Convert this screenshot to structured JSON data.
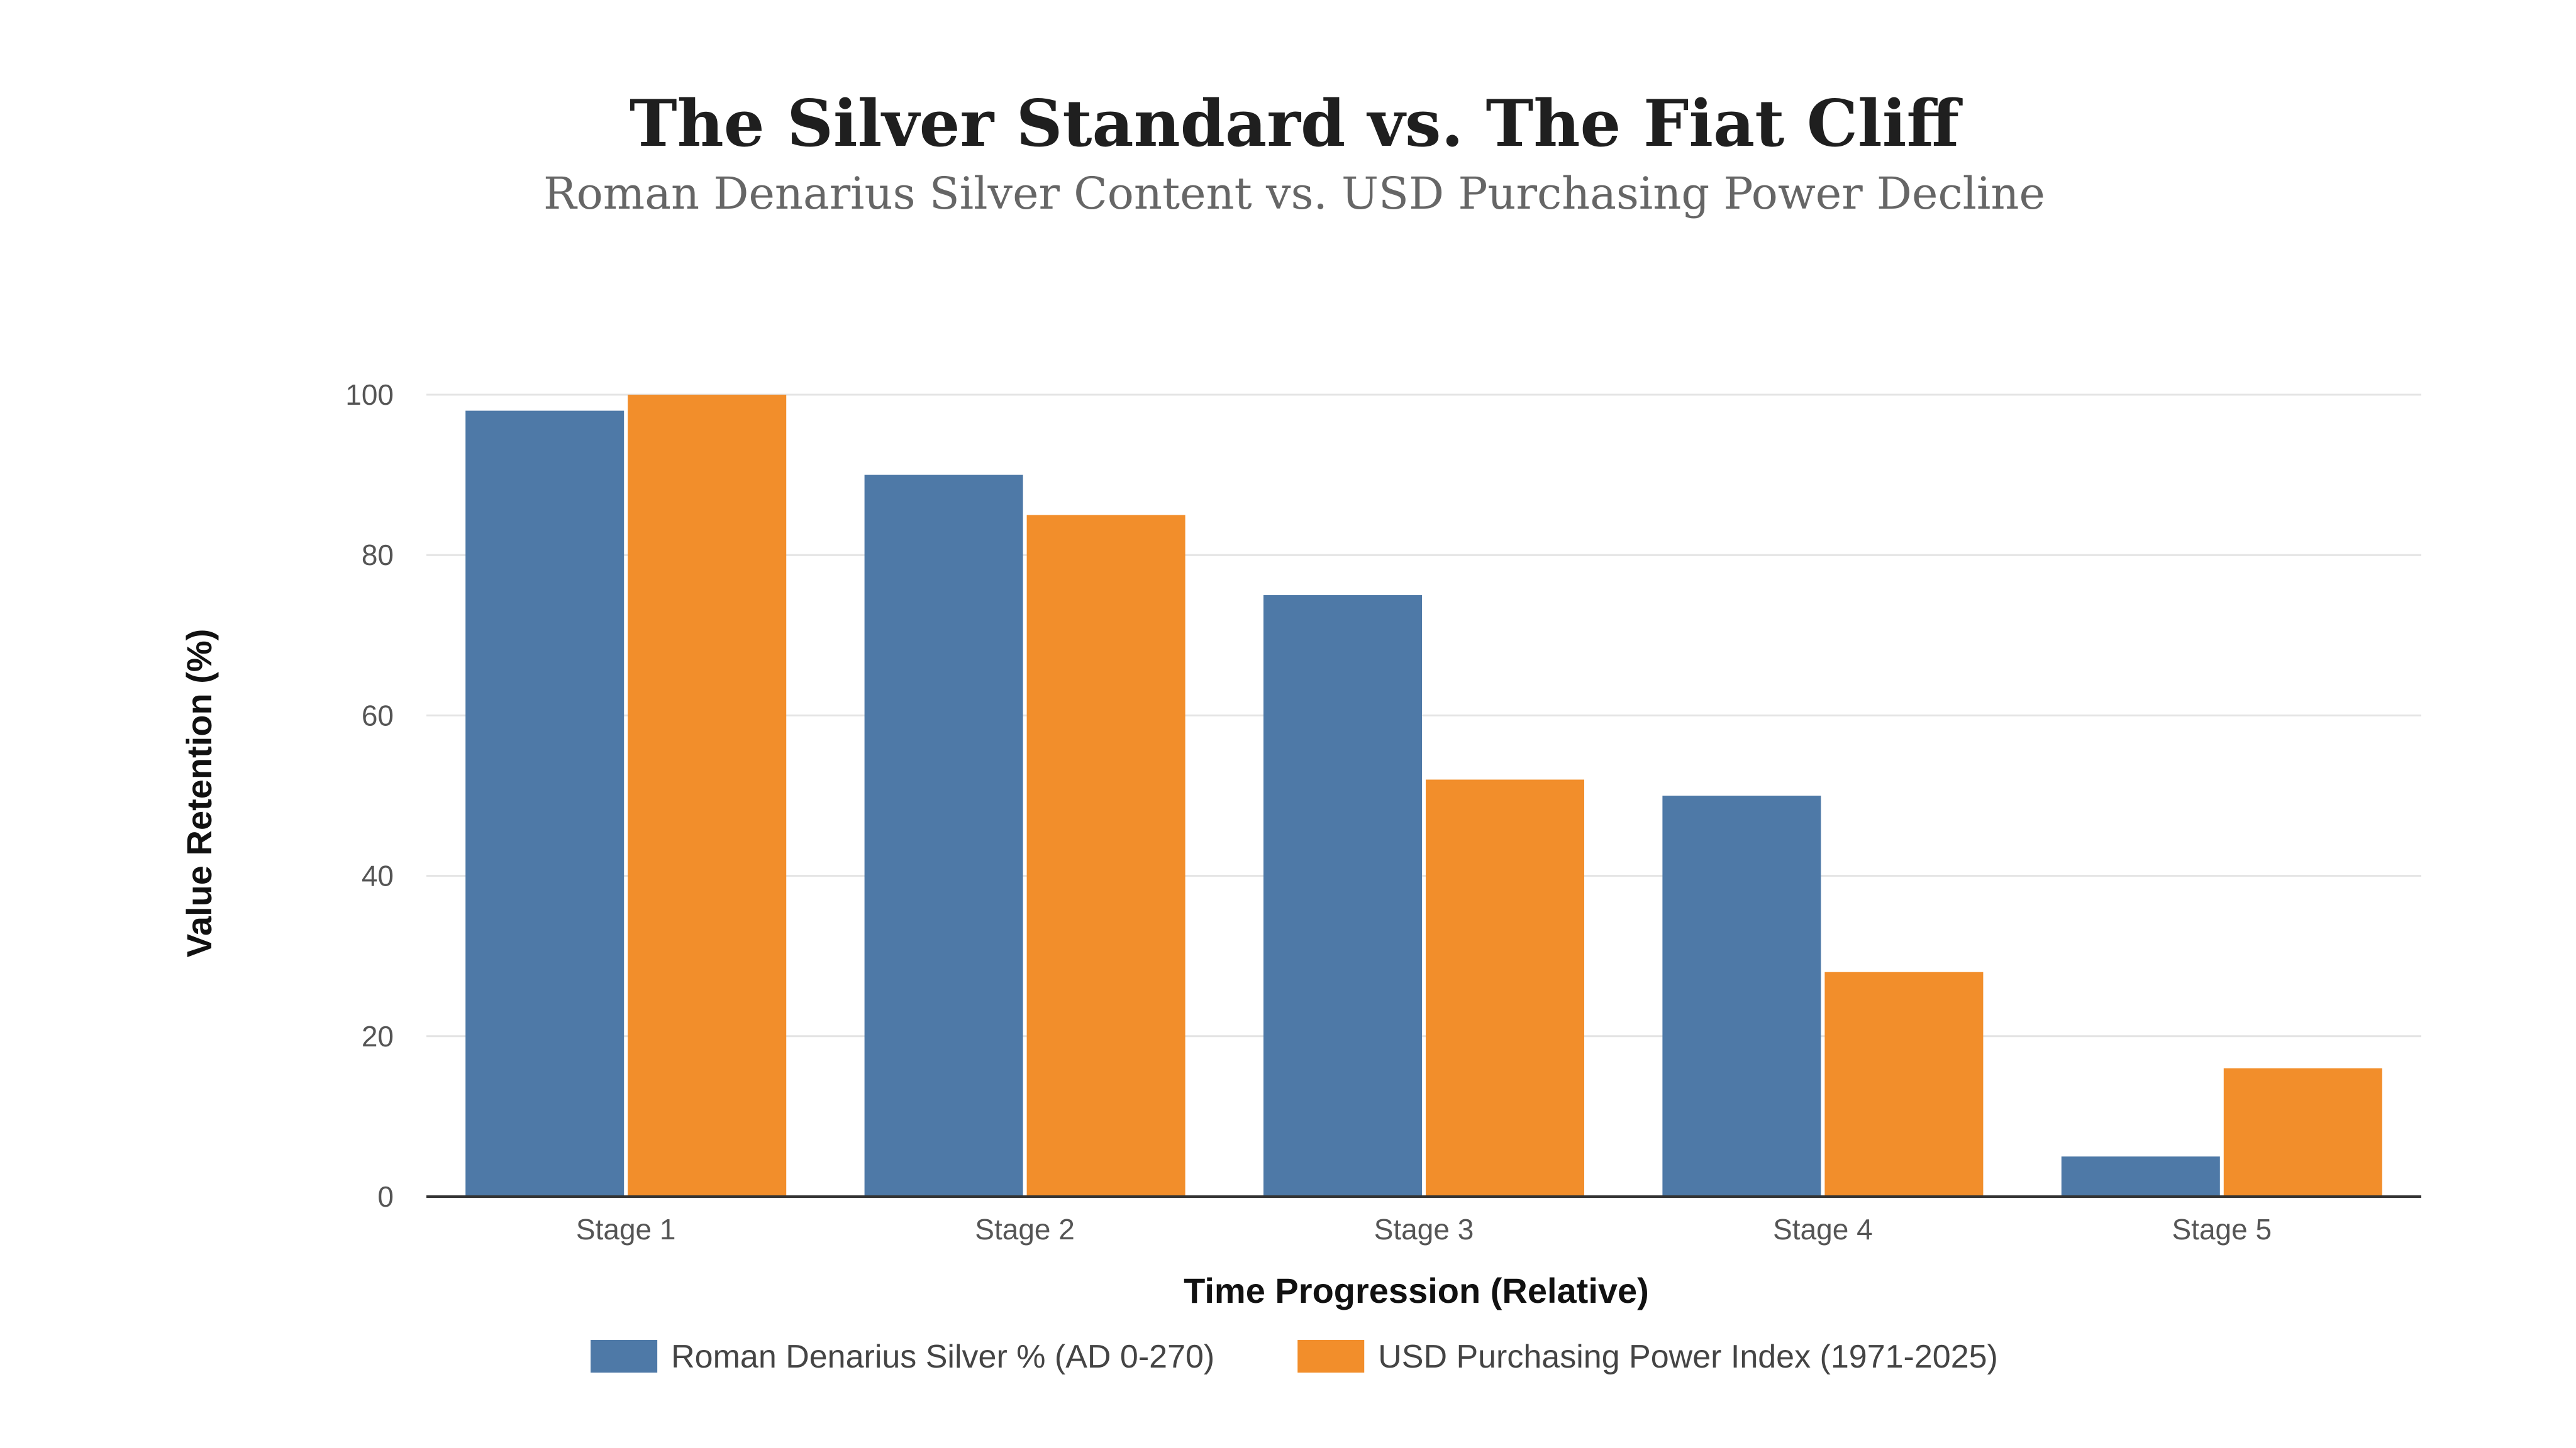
{
  "chart_data": {
    "type": "bar",
    "title": "The Silver Standard vs. The Fiat Cliff",
    "subtitle": "Roman Denarius Silver Content vs. USD Purchasing Power Decline",
    "xlabel": "Time Progression (Relative)",
    "ylabel": "Value Retention (%)",
    "categories": [
      "Stage 1",
      "Stage 2",
      "Stage 3",
      "Stage 4",
      "Stage 5"
    ],
    "series": [
      {
        "name": "Roman Denarius Silver % (AD 0-270)",
        "color": "#4e79a7",
        "values": [
          98,
          90,
          75,
          50,
          5
        ]
      },
      {
        "name": "USD Purchasing Power Index (1971-2025)",
        "color": "#f28e2b",
        "values": [
          100,
          85,
          52,
          28,
          16
        ]
      }
    ],
    "ylim": [
      0,
      100
    ],
    "yticks": [
      0,
      20,
      40,
      60,
      80,
      100
    ],
    "grid": true,
    "legend_position": "bottom-center"
  }
}
